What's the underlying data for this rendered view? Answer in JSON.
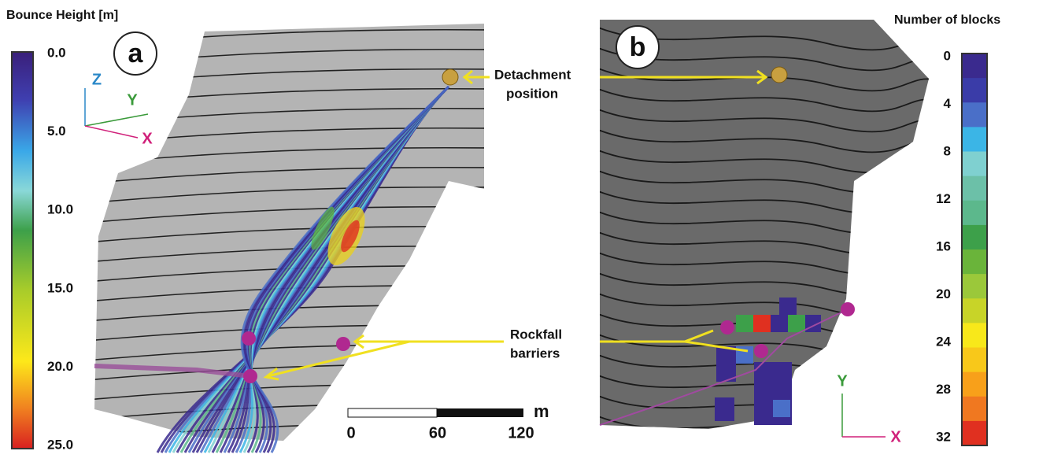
{
  "panel_a": {
    "label": "a",
    "colorbar": {
      "title": "Bounce Height [m]",
      "ticks": [
        "0.0",
        "5.0",
        "10.0",
        "15.0",
        "20.0",
        "25.0"
      ]
    },
    "axes": {
      "z": "Z",
      "y": "Y",
      "x": "X"
    }
  },
  "panel_b": {
    "label": "b",
    "colorbar": {
      "title": "Number of blocks",
      "ticks": [
        "0",
        "4",
        "8",
        "12",
        "16",
        "20",
        "24",
        "28",
        "32"
      ]
    },
    "axes": {
      "y": "Y",
      "x": "X"
    }
  },
  "annotations": {
    "detachment": [
      "Detachment",
      "position"
    ],
    "barriers": [
      "Rockfall",
      "barriers"
    ]
  },
  "scale_bar": {
    "unit": "m",
    "ticks": [
      "0",
      "60",
      "120"
    ]
  }
}
